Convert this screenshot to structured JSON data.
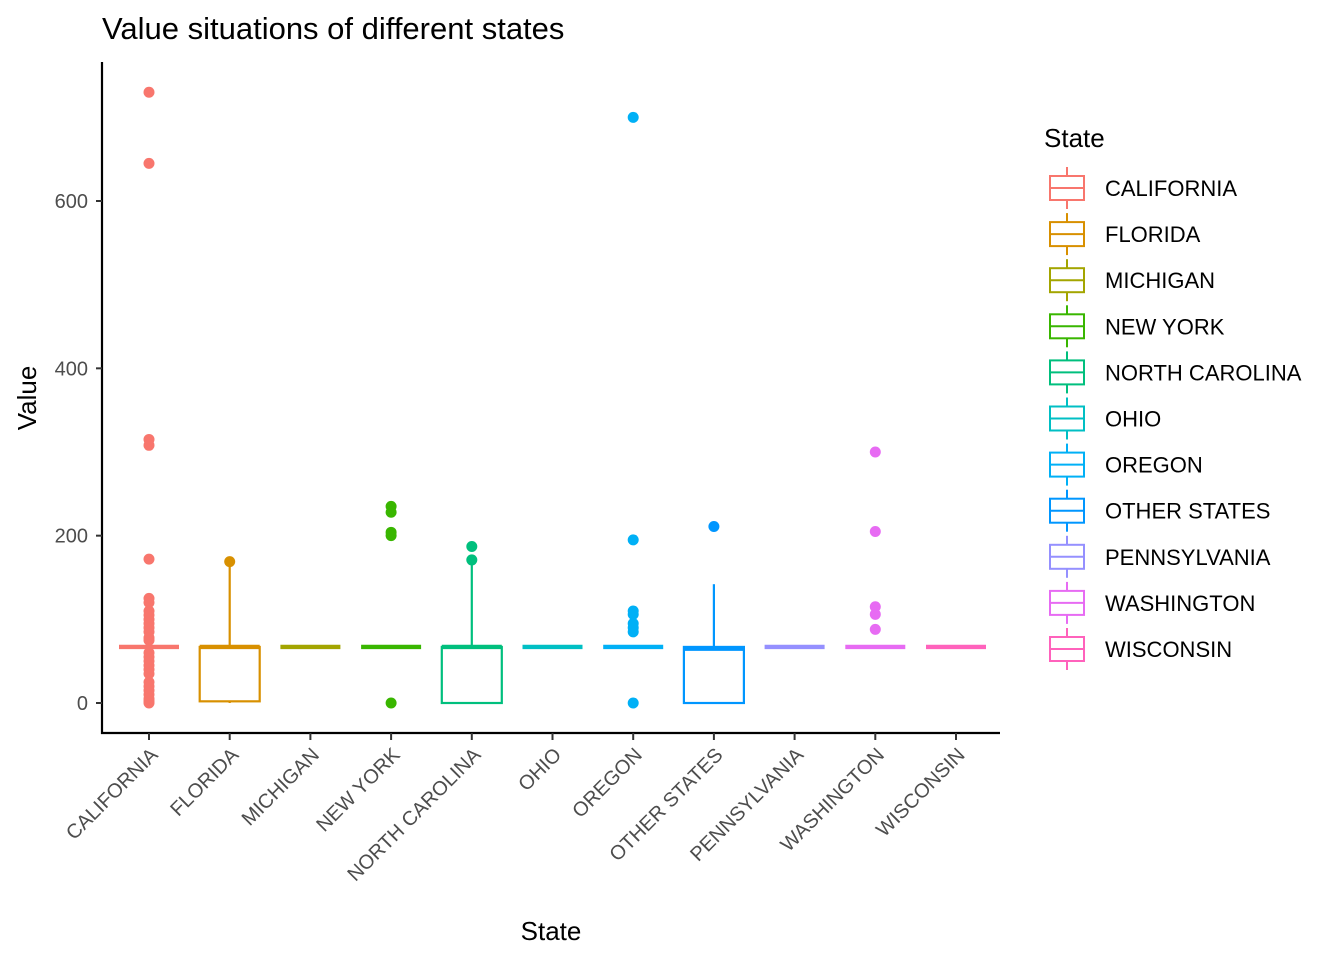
{
  "chart_data": {
    "type": "box",
    "title": "Value situations of different states",
    "xlabel": "State",
    "ylabel": "Value",
    "ylim": [
      -35,
      765
    ],
    "yticks": [
      0,
      200,
      400,
      600
    ],
    "grid": false,
    "legend": {
      "title": "State",
      "placement": "right"
    },
    "categories": [
      "CALIFORNIA",
      "FLORIDA",
      "MICHIGAN",
      "NEW YORK",
      "NORTH CAROLINA",
      "OHIO",
      "OREGON",
      "OTHER STATES",
      "PENNSYLVANIA",
      "WASHINGTON",
      "WISCONSIN"
    ],
    "colors": [
      "#F8766D",
      "#D89000",
      "#A3A500",
      "#39B600",
      "#00BF7D",
      "#00BFC4",
      "#00B0F6",
      "#0096FF",
      "#9590FF",
      "#E76BF3",
      "#FF62BC"
    ],
    "boxes": [
      {
        "name": "CALIFORNIA",
        "q1": 67,
        "median": 67,
        "q3": 67,
        "whisker_low": 67,
        "whisker_high": 67,
        "outliers": [
          730,
          645,
          315,
          308,
          172,
          125,
          120,
          110,
          105,
          100,
          95,
          90,
          85,
          78,
          75,
          60,
          55,
          50,
          45,
          40,
          35,
          25,
          20,
          15,
          10,
          5,
          2,
          0
        ]
      },
      {
        "name": "FLORIDA",
        "q1": 2,
        "median": 67,
        "q3": 67,
        "whisker_low": 0,
        "whisker_high": 168,
        "outliers": [
          169
        ]
      },
      {
        "name": "MICHIGAN",
        "q1": 67,
        "median": 67,
        "q3": 67,
        "whisker_low": 67,
        "whisker_high": 67,
        "outliers": []
      },
      {
        "name": "NEW YORK",
        "q1": 67,
        "median": 67,
        "q3": 67,
        "whisker_low": 67,
        "whisker_high": 67,
        "outliers": [
          235,
          228,
          204,
          200,
          0
        ]
      },
      {
        "name": "NORTH CAROLINA",
        "q1": 0,
        "median": 67,
        "q3": 67,
        "whisker_low": 0,
        "whisker_high": 170,
        "outliers": [
          187,
          171
        ]
      },
      {
        "name": "OHIO",
        "q1": 67,
        "median": 67,
        "q3": 67,
        "whisker_low": 67,
        "whisker_high": 67,
        "outliers": []
      },
      {
        "name": "OREGON",
        "q1": 67,
        "median": 67,
        "q3": 67,
        "whisker_low": 67,
        "whisker_high": 67,
        "outliers": [
          700,
          195,
          110,
          106,
          95,
          90,
          85,
          0
        ]
      },
      {
        "name": "OTHER STATES",
        "q1": 0,
        "median": 65,
        "q3": 67,
        "whisker_low": 0,
        "whisker_high": 142,
        "outliers": [
          211
        ]
      },
      {
        "name": "PENNSYLVANIA",
        "q1": 67,
        "median": 67,
        "q3": 67,
        "whisker_low": 67,
        "whisker_high": 67,
        "outliers": []
      },
      {
        "name": "WASHINGTON",
        "q1": 67,
        "median": 67,
        "q3": 67,
        "whisker_low": 67,
        "whisker_high": 67,
        "outliers": [
          300,
          205,
          115,
          106,
          88
        ]
      },
      {
        "name": "WISCONSIN",
        "q1": 67,
        "median": 67,
        "q3": 67,
        "whisker_low": 67,
        "whisker_high": 67,
        "outliers": []
      }
    ]
  }
}
